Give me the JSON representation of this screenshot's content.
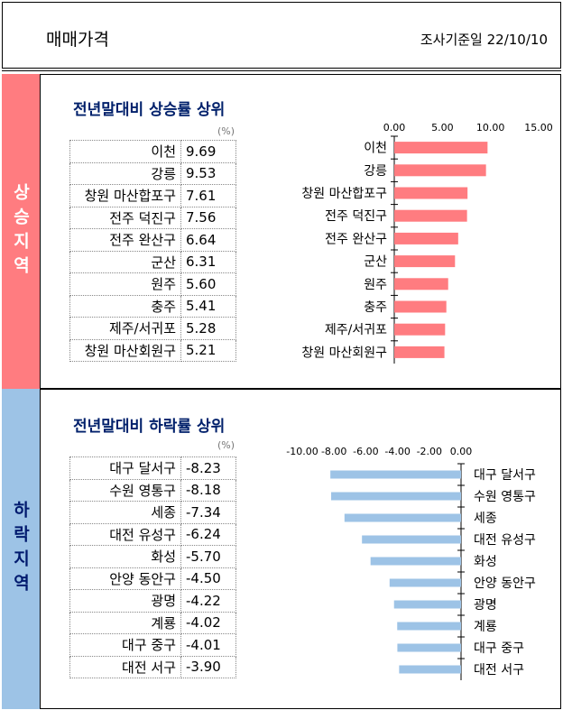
{
  "header": {
    "title": "매매가격",
    "survey_date": "조사기준일 22/10/10"
  },
  "rise": {
    "side_label": "상승지역",
    "title": "전년말대비 상승률 상위",
    "unit": "(%)",
    "rows": [
      {
        "name": "이천",
        "value": "9.69"
      },
      {
        "name": "강릉",
        "value": "9.53"
      },
      {
        "name": "창원 마산합포구",
        "value": "7.61"
      },
      {
        "name": "전주 덕진구",
        "value": "7.56"
      },
      {
        "name": "전주 완산구",
        "value": "6.64"
      },
      {
        "name": "군산",
        "value": "6.31"
      },
      {
        "name": "원주",
        "value": "5.60"
      },
      {
        "name": "충주",
        "value": "5.41"
      },
      {
        "name": "제주/서귀포",
        "value": "5.28"
      },
      {
        "name": "창원 마산회원구",
        "value": "5.21"
      }
    ]
  },
  "fall": {
    "side_label": "하락지역",
    "title": "전년말대비 하락률 상위",
    "unit": "(%)",
    "rows": [
      {
        "name": "대구 달서구",
        "value": "-8.23"
      },
      {
        "name": "수원 영통구",
        "value": "-8.18"
      },
      {
        "name": "세종",
        "value": "-7.34"
      },
      {
        "name": "대전 유성구",
        "value": "-6.24"
      },
      {
        "name": "화성",
        "value": "-5.70"
      },
      {
        "name": "안양 동안구",
        "value": "-4.50"
      },
      {
        "name": "광명",
        "value": "-4.22"
      },
      {
        "name": "계룡",
        "value": "-4.02"
      },
      {
        "name": "대구 중구",
        "value": "-4.01"
      },
      {
        "name": "대전 서구",
        "value": "-3.90"
      }
    ]
  },
  "chart_data": [
    {
      "type": "bar",
      "orientation": "horizontal",
      "categories": [
        "이천",
        "강릉",
        "창원 마산합포구",
        "전주 덕진구",
        "전주 완산구",
        "군산",
        "원주",
        "충주",
        "제주/서귀포",
        "창원 마산회원구"
      ],
      "values": [
        9.69,
        9.53,
        7.61,
        7.56,
        6.64,
        6.31,
        5.6,
        5.41,
        5.28,
        5.21
      ],
      "xlim": [
        0,
        15
      ],
      "ticks": [
        "0.00",
        "5.00",
        "10.00",
        "15.00"
      ],
      "axis_position": "top",
      "color": "#ff7c80"
    },
    {
      "type": "bar",
      "orientation": "horizontal",
      "categories": [
        "대구 달서구",
        "수원 영통구",
        "세종",
        "대전 유성구",
        "화성",
        "안양 동안구",
        "광명",
        "계룡",
        "대구 중구",
        "대전 서구"
      ],
      "values": [
        -8.23,
        -8.18,
        -7.34,
        -6.24,
        -5.7,
        -4.5,
        -4.22,
        -4.02,
        -4.01,
        -3.9
      ],
      "xlim": [
        -10,
        0
      ],
      "ticks": [
        "-10.00",
        "-8.00",
        "-6.00",
        "-4.00",
        "-2.00",
        "0.00"
      ],
      "axis_position": "top",
      "color": "#9dc3e6"
    }
  ]
}
